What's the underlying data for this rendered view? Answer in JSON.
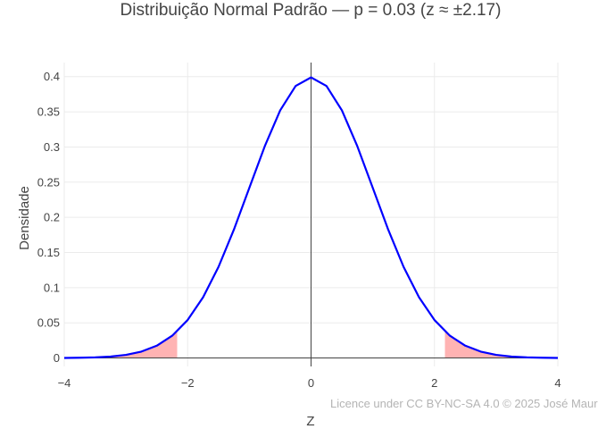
{
  "chart_data": {
    "type": "area",
    "title": "Distribuição Normal Padrão — p = 0.03 (z ≈ ±2.17)",
    "xlabel": "Z",
    "ylabel": "Densidade",
    "xlim": [
      -4,
      4
    ],
    "ylim": [
      -0.012,
      0.42
    ],
    "x_ticks": [
      -4,
      -2,
      0,
      2,
      4
    ],
    "x_tick_labels": [
      "−4",
      "−2",
      "0",
      "2",
      "4"
    ],
    "y_ticks": [
      0,
      0.05,
      0.1,
      0.15,
      0.2,
      0.25,
      0.3,
      0.35,
      0.4
    ],
    "y_tick_labels": [
      "0",
      "0.05",
      "0.1",
      "0.15",
      "0.2",
      "0.25",
      "0.3",
      "0.35",
      "0.4"
    ],
    "grid": true,
    "zero_line_x": 0,
    "series": [
      {
        "kind": "line",
        "color": "#0000ff",
        "x": [
          -4,
          -3.75,
          -3.5,
          -3.25,
          -3,
          -2.75,
          -2.5,
          -2.25,
          -2,
          -1.75,
          -1.5,
          -1.25,
          -1,
          -0.75,
          -0.5,
          -0.25,
          0,
          0.25,
          0.5,
          0.75,
          1,
          1.25,
          1.5,
          1.75,
          2,
          2.25,
          2.5,
          2.75,
          3,
          3.25,
          3.5,
          3.75,
          4
        ],
        "y": [
          0.0001,
          0.0004,
          0.0009,
          0.002,
          0.0044,
          0.0091,
          0.0175,
          0.0317,
          0.054,
          0.0863,
          0.1295,
          0.1826,
          0.242,
          0.3011,
          0.3521,
          0.3867,
          0.3989,
          0.3867,
          0.3521,
          0.3011,
          0.242,
          0.1826,
          0.1295,
          0.0863,
          0.054,
          0.0317,
          0.0175,
          0.0091,
          0.0044,
          0.002,
          0.0009,
          0.0004,
          0.0001
        ]
      },
      {
        "kind": "area",
        "color": "#ffb3b3",
        "x": [
          -4,
          -3.75,
          -3.5,
          -3.25,
          -3,
          -2.75,
          -2.5,
          -2.25,
          -2.17
        ],
        "y": [
          0.0001,
          0.0004,
          0.0009,
          0.002,
          0.0044,
          0.0091,
          0.0175,
          0.0317,
          0.0379
        ]
      },
      {
        "kind": "area",
        "color": "#ffb3b3",
        "x": [
          2.17,
          2.25,
          2.5,
          2.75,
          3,
          3.25,
          3.5,
          3.75,
          4
        ],
        "y": [
          0.0379,
          0.0317,
          0.0175,
          0.0091,
          0.0044,
          0.002,
          0.0009,
          0.0004,
          0.0001
        ]
      }
    ]
  },
  "license": "Licence under CC BY-NC-SA 4.0 © 2025 José Mauro"
}
